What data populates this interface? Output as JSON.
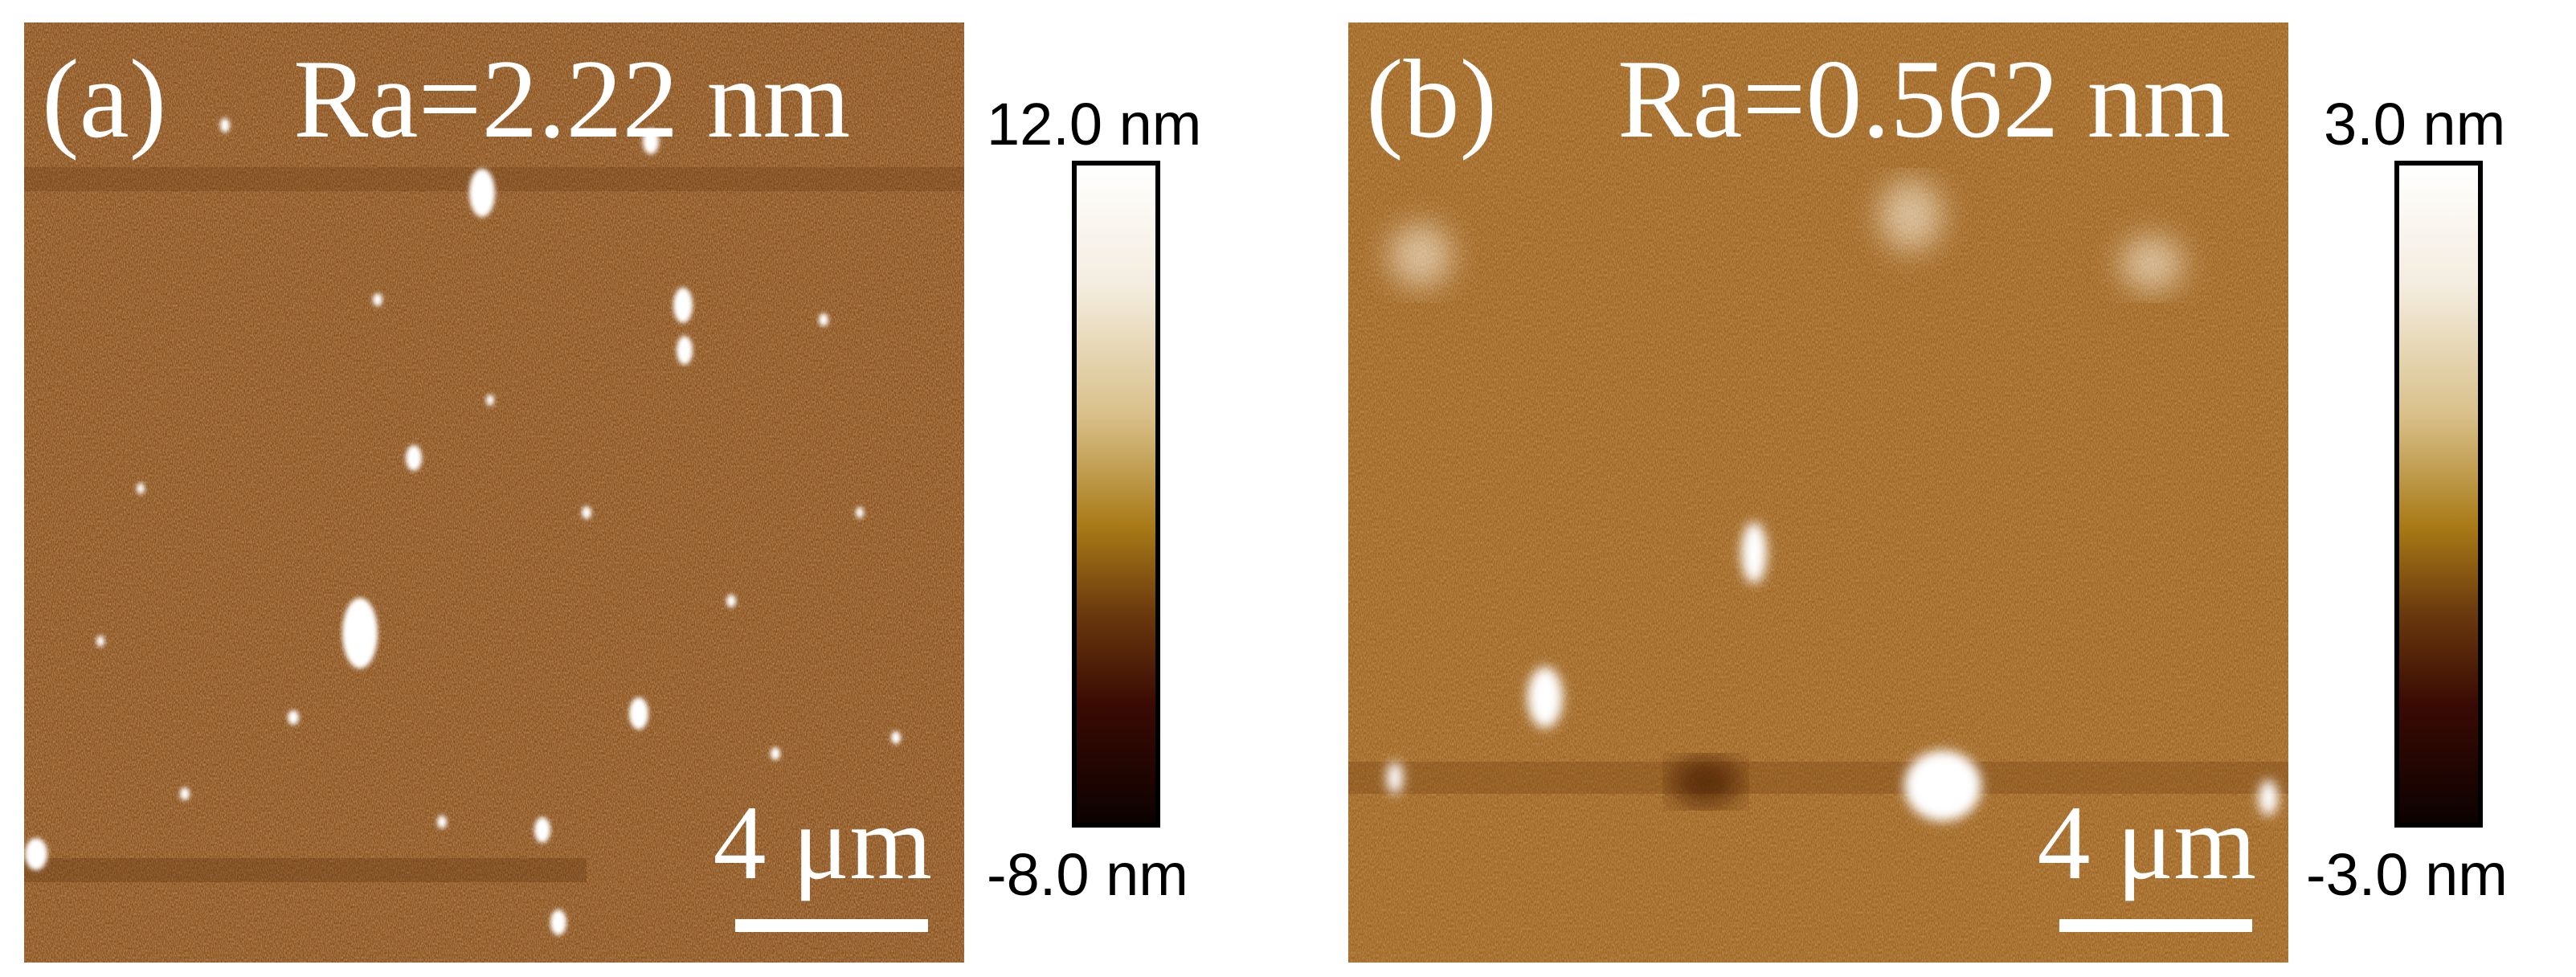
{
  "panels": [
    {
      "label": "(a)",
      "roughness": "Ra=2.22 nm",
      "scale_bar": "4 μm",
      "colorbar": {
        "max": "12.0 nm",
        "min": "-8.0 nm"
      },
      "base_color": "#8a4e17"
    },
    {
      "label": "(b)",
      "roughness": "Ra=0.562 nm",
      "scale_bar": "4 μm",
      "colorbar": {
        "max": "3.0 nm",
        "min": "-3.0 nm"
      },
      "base_color": "#a0641f"
    }
  ]
}
